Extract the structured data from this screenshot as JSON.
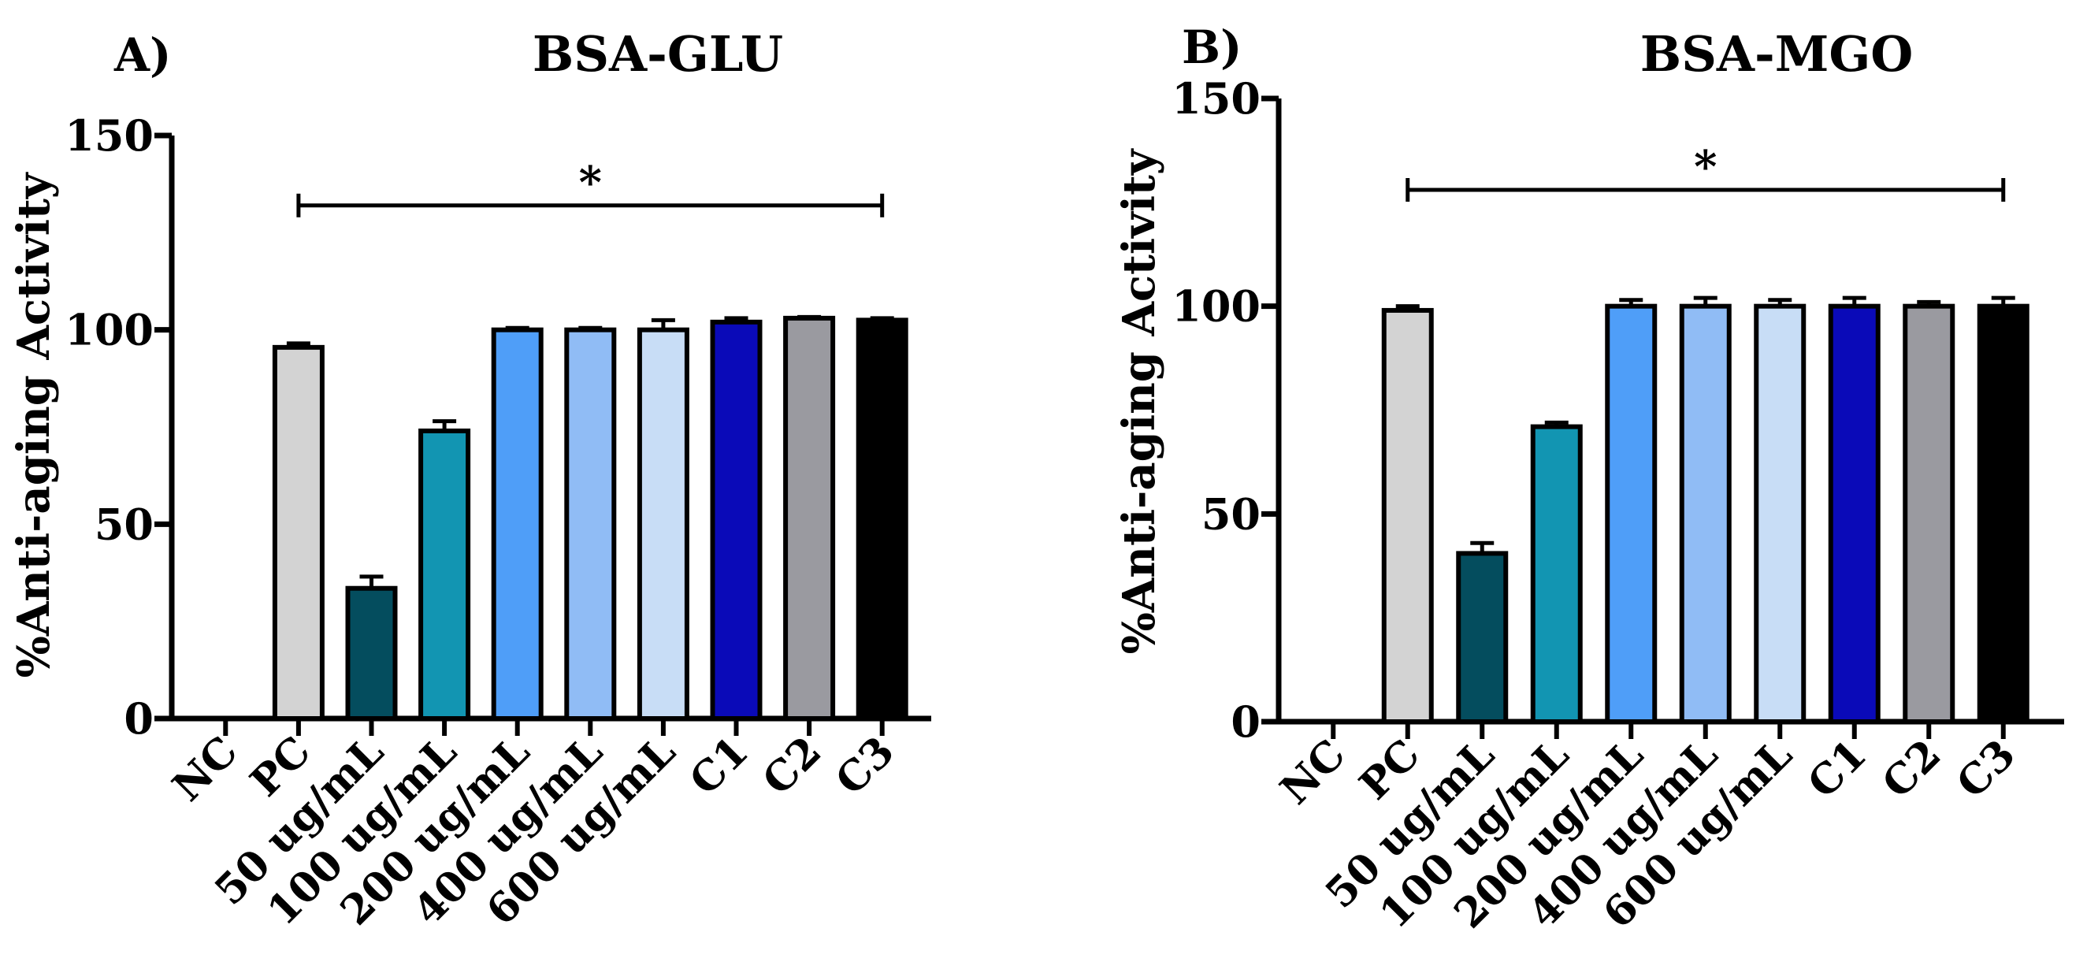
{
  "figure": {
    "panels": [
      {
        "label": "A)",
        "title": "BSA-GLU"
      },
      {
        "label": "B)",
        "title": "BSA-MGO"
      }
    ]
  },
  "chart_data": [
    {
      "type": "bar",
      "panel_label": "A)",
      "title": "BSA-GLU",
      "xlabel": "",
      "ylabel": "%Anti-aging Activity",
      "ylim": [
        0,
        150
      ],
      "yticks": [
        0,
        50,
        100,
        150
      ],
      "grid": false,
      "categories": [
        "NC",
        "PC",
        "50 ug/mL",
        "100 ug/mL",
        "200 ug/mL",
        "400 ug/mL",
        "600 ug/mL",
        "C1",
        "C2",
        "C3"
      ],
      "values": [
        0,
        95.5,
        33.5,
        74,
        100,
        100,
        100,
        102,
        103,
        102.5
      ],
      "errors": [
        0,
        1,
        3,
        2.5,
        0.5,
        0.5,
        2.5,
        1,
        0.3,
        0.5
      ],
      "colors": [
        "#ffffff",
        "#d3d3d3",
        "#044d5e",
        "#1295b2",
        "#4f9ef8",
        "#90bcf5",
        "#c8ddf6",
        "#0a0ab8",
        "#9a9aa0",
        "#000000"
      ],
      "significance": {
        "from": "PC",
        "to": "C3",
        "y": 132,
        "text": "*"
      }
    },
    {
      "type": "bar",
      "panel_label": "B)",
      "title": "BSA-MGO",
      "xlabel": "",
      "ylabel": "%Anti-aging Activity",
      "ylim": [
        0,
        150
      ],
      "yticks": [
        0,
        50,
        100,
        150
      ],
      "grid": false,
      "categories": [
        "NC",
        "PC",
        "50 ug/mL",
        "100 ug/mL",
        "200 ug/mL",
        "400 ug/mL",
        "600 ug/mL",
        "C1",
        "C2",
        "C3"
      ],
      "values": [
        0,
        99,
        40.5,
        71,
        100,
        100,
        100,
        100,
        100,
        100
      ],
      "errors": [
        0,
        1,
        2.5,
        1,
        1.5,
        2,
        1.5,
        2,
        1,
        2
      ],
      "colors": [
        "#ffffff",
        "#d3d3d3",
        "#044d5e",
        "#1295b2",
        "#4f9ef8",
        "#90bcf5",
        "#c8ddf6",
        "#0a0ab8",
        "#9a9aa0",
        "#000000"
      ],
      "significance": {
        "from": "PC",
        "to": "C3",
        "y": 128,
        "text": "*"
      }
    }
  ]
}
